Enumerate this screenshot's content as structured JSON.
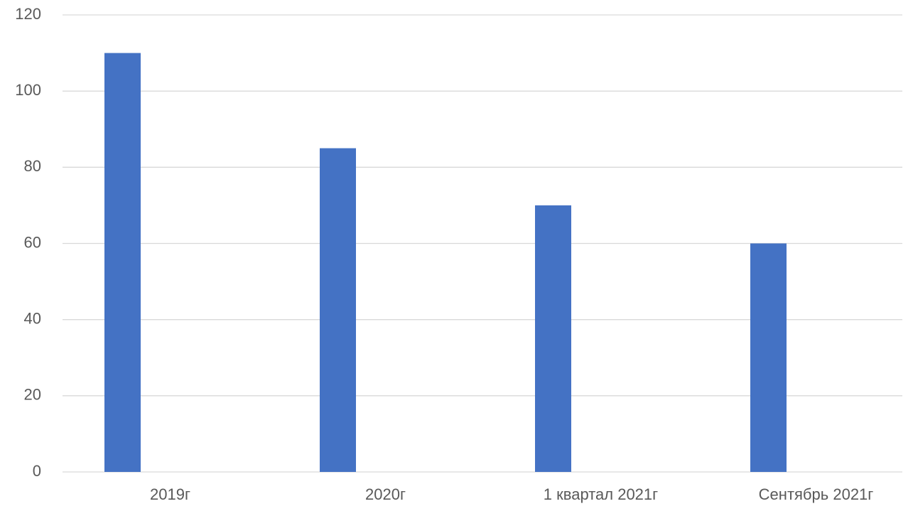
{
  "chart_data": {
    "type": "bar",
    "categories": [
      "2019г",
      "2020г",
      "1 квартал 2021г",
      "Сентябрь 2021г"
    ],
    "values": [
      110,
      85,
      70,
      60
    ],
    "color": "#4472c4",
    "ylim": [
      0,
      120
    ],
    "yticks": [
      0,
      20,
      40,
      60,
      80,
      100,
      120
    ],
    "grid": true
  }
}
